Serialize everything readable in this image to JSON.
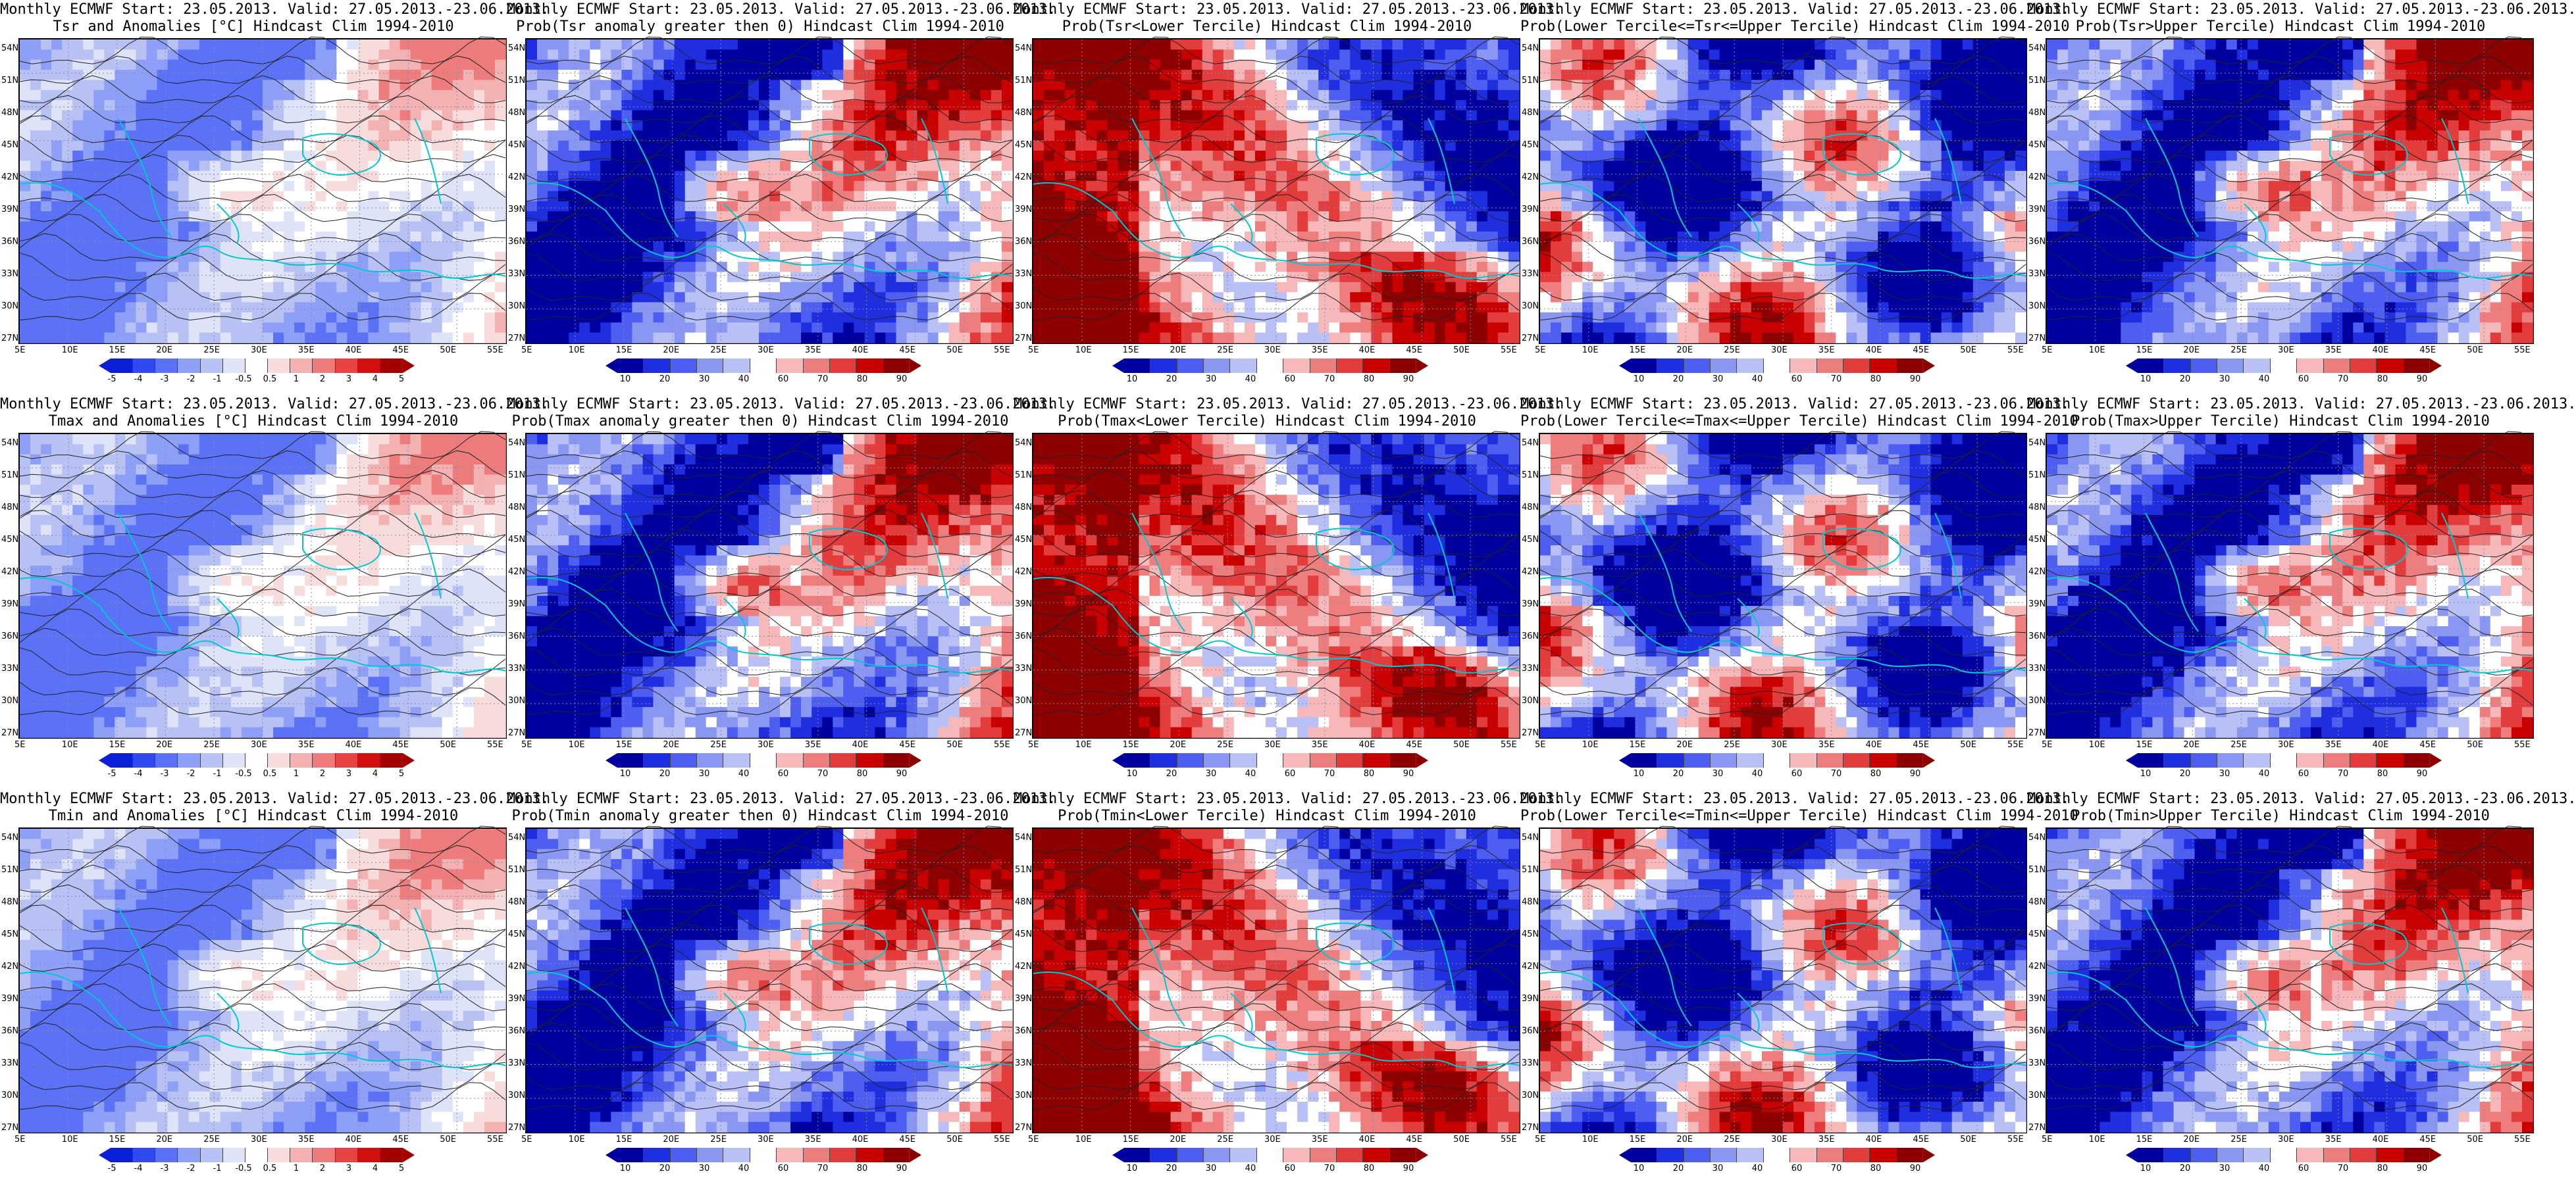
{
  "panels": [
    {
      "row": 0,
      "col": 0,
      "title1": "Monthly ECMWF Start: 23.05.2013. Valid: 27.05.2013.-23.06.2013.",
      "title2": "Tsr and Anomalies [°C] Hindcast Clim 1994-2010",
      "kind": "anom",
      "colorbar_ticks": [
        "-5",
        "-4",
        "-3",
        "-2",
        "-1",
        "-0.5",
        "0.5",
        "1",
        "2",
        "3",
        "4",
        "5"
      ]
    },
    {
      "row": 0,
      "col": 1,
      "title1": "Monthly ECMWF Start: 23.05.2013. Valid: 27.05.2013.-23.06.2013.",
      "title2": "Prob(Tsr anomaly greater then 0) Hindcast Clim 1994-2010",
      "kind": "prob_hot",
      "colorbar_ticks": [
        "10",
        "20",
        "30",
        "40",
        "60",
        "70",
        "80",
        "90"
      ]
    },
    {
      "row": 0,
      "col": 2,
      "title1": "Monthly ECMWF Start: 23.05.2013. Valid: 27.05.2013.-23.06.2013.",
      "title2": "Prob(Tsr<Lower Tercile) Hindcast Clim 1994-2010",
      "kind": "prob_cold",
      "colorbar_ticks": [
        "10",
        "20",
        "30",
        "40",
        "60",
        "70",
        "80",
        "90"
      ]
    },
    {
      "row": 0,
      "col": 3,
      "title1": "Monthly ECMWF Start: 23.05.2013. Valid: 27.05.2013.-23.06.2013.",
      "title2": "Prob(Lower Tercile<=Tsr<=Upper Tercile) Hindcast Clim 1994-2010",
      "kind": "prob_mid",
      "colorbar_ticks": [
        "10",
        "20",
        "30",
        "40",
        "60",
        "70",
        "80",
        "90"
      ]
    },
    {
      "row": 0,
      "col": 4,
      "title1": "Monthly ECMWF Start: 23.05.2013. Valid: 27.05.2013.-23.06.2013.",
      "title2": "Prob(Tsr>Upper Tercile) Hindcast Clim 1994-2010",
      "kind": "prob_hot",
      "colorbar_ticks": [
        "10",
        "20",
        "30",
        "40",
        "60",
        "70",
        "80",
        "90"
      ]
    },
    {
      "row": 1,
      "col": 0,
      "title1": "Monthly ECMWF Start: 23.05.2013. Valid: 27.05.2013.-23.06.2013.",
      "title2": "Tmax and Anomalies [°C] Hindcast Clim 1994-2010",
      "kind": "anom",
      "colorbar_ticks": [
        "-5",
        "-4",
        "-3",
        "-2",
        "-1",
        "-0.5",
        "0.5",
        "1",
        "2",
        "3",
        "4",
        "5"
      ]
    },
    {
      "row": 1,
      "col": 1,
      "title1": "Monthly ECMWF Start: 23.05.2013. Valid: 27.05.2013.-23.06.2013.",
      "title2": "Prob(Tmax anomaly greater then 0) Hindcast Clim 1994-2010",
      "kind": "prob_hot",
      "colorbar_ticks": [
        "10",
        "20",
        "30",
        "40",
        "60",
        "70",
        "80",
        "90"
      ]
    },
    {
      "row": 1,
      "col": 2,
      "title1": "Monthly ECMWF Start: 23.05.2013. Valid: 27.05.2013.-23.06.2013.",
      "title2": "Prob(Tmax<Lower Tercile) Hindcast Clim 1994-2010",
      "kind": "prob_cold",
      "colorbar_ticks": [
        "10",
        "20",
        "30",
        "40",
        "60",
        "70",
        "80",
        "90"
      ]
    },
    {
      "row": 1,
      "col": 3,
      "title1": "Monthly ECMWF Start: 23.05.2013. Valid: 27.05.2013.-23.06.2013.",
      "title2": "Prob(Lower Tercile<=Tmax<=Upper Tercile) Hindcast Clim 1994-2010",
      "kind": "prob_mid",
      "colorbar_ticks": [
        "10",
        "20",
        "30",
        "40",
        "60",
        "70",
        "80",
        "90"
      ]
    },
    {
      "row": 1,
      "col": 4,
      "title1": "Monthly ECMWF Start: 23.05.2013. Valid: 27.05.2013.-23.06.2013.",
      "title2": "Prob(Tmax>Upper Tercile) Hindcast Clim 1994-2010",
      "kind": "prob_hot",
      "colorbar_ticks": [
        "10",
        "20",
        "30",
        "40",
        "60",
        "70",
        "80",
        "90"
      ]
    },
    {
      "row": 2,
      "col": 0,
      "title1": "Monthly ECMWF Start: 23.05.2013. Valid: 27.05.2013.-23.06.2013.",
      "title2": "Tmin and Anomalies [°C] Hindcast Clim 1994-2010",
      "kind": "anom",
      "colorbar_ticks": [
        "-5",
        "-4",
        "-3",
        "-2",
        "-1",
        "-0.5",
        "0.5",
        "1",
        "2",
        "3",
        "4",
        "5"
      ]
    },
    {
      "row": 2,
      "col": 1,
      "title1": "Monthly ECMWF Start: 23.05.2013. Valid: 27.05.2013.-23.06.2013.",
      "title2": "Prob(Tmin anomaly greater then 0) Hindcast Clim 1994-2010",
      "kind": "prob_hot",
      "colorbar_ticks": [
        "10",
        "20",
        "30",
        "40",
        "60",
        "70",
        "80",
        "90"
      ]
    },
    {
      "row": 2,
      "col": 2,
      "title1": "Monthly ECMWF Start: 23.05.2013. Valid: 27.05.2013.-23.06.2013.",
      "title2": "Prob(Tmin<Lower Tercile) Hindcast Clim 1994-2010",
      "kind": "prob_cold",
      "colorbar_ticks": [
        "10",
        "20",
        "30",
        "40",
        "60",
        "70",
        "80",
        "90"
      ]
    },
    {
      "row": 2,
      "col": 3,
      "title1": "Monthly ECMWF Start: 23.05.2013. Valid: 27.05.2013.-23.06.2013.",
      "title2": "Prob(Lower Tercile<=Tmin<=Upper Tercile) Hindcast Clim 1994-2010",
      "kind": "prob_mid",
      "colorbar_ticks": [
        "10",
        "20",
        "30",
        "40",
        "60",
        "70",
        "80",
        "90"
      ]
    },
    {
      "row": 2,
      "col": 4,
      "title1": "Monthly ECMWF Start: 23.05.2013. Valid: 27.05.2013.-23.06.2013.",
      "title2": "Prob(Tmin>Upper Tercile) Hindcast Clim 1994-2010",
      "kind": "prob_hot",
      "colorbar_ticks": [
        "10",
        "20",
        "30",
        "40",
        "60",
        "70",
        "80",
        "90"
      ]
    }
  ],
  "lat_ticks": [
    "54N",
    "51N",
    "48N",
    "45N",
    "42N",
    "39N",
    "36N",
    "33N",
    "30N",
    "27N"
  ],
  "lon_ticks": [
    "5E",
    "10E",
    "15E",
    "20E",
    "25E",
    "30E",
    "35E",
    "40E",
    "45E",
    "50E",
    "55E"
  ],
  "colors": {
    "anom_scale": [
      "#0a1fd6",
      "#2f48f0",
      "#5b72f7",
      "#8e9ff7",
      "#b8c1f4",
      "#dfe3f7",
      "#ffffff",
      "#f8dcdc",
      "#f3b1b1",
      "#ee7c7c",
      "#e84242",
      "#d21010",
      "#a30000"
    ],
    "prob_scale": [
      "#00009e",
      "#1f2fe0",
      "#4d5ef0",
      "#8a97f2",
      "#b8c0f5",
      "#ffffff",
      "#f6b8b8",
      "#ee7d7d",
      "#e23c3c",
      "#c80000",
      "#8c0000"
    ],
    "coast": "#00c8d0",
    "contour": "#222222"
  }
}
